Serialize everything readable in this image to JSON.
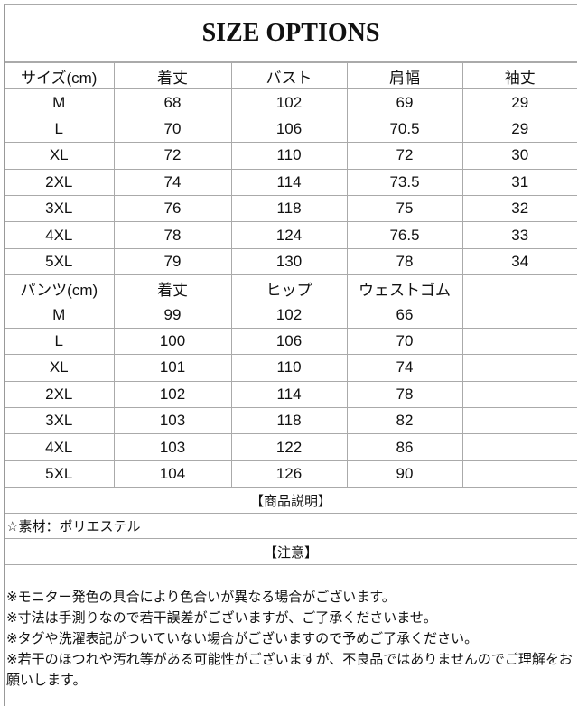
{
  "title": "SIZE OPTIONS",
  "tops_table": {
    "headers": [
      "サイズ(cm)",
      "着丈",
      "バスト",
      "肩幅",
      "袖丈"
    ],
    "rows": [
      [
        "M",
        "68",
        "102",
        "69",
        "29"
      ],
      [
        "L",
        "70",
        "106",
        "70.5",
        "29"
      ],
      [
        "XL",
        "72",
        "110",
        "72",
        "30"
      ],
      [
        "2XL",
        "74",
        "114",
        "73.5",
        "31"
      ],
      [
        "3XL",
        "76",
        "118",
        "75",
        "32"
      ],
      [
        "4XL",
        "78",
        "124",
        "76.5",
        "33"
      ],
      [
        "5XL",
        "79",
        "130",
        "78",
        "34"
      ]
    ]
  },
  "pants_table": {
    "headers": [
      "パンツ(cm)",
      "着丈",
      "ヒップ",
      "ウェストゴム",
      ""
    ],
    "rows": [
      [
        "M",
        "99",
        "102",
        "66",
        ""
      ],
      [
        "L",
        "100",
        "106",
        "70",
        ""
      ],
      [
        "XL",
        "101",
        "110",
        "74",
        ""
      ],
      [
        "2XL",
        "102",
        "114",
        "78",
        ""
      ],
      [
        "3XL",
        "103",
        "118",
        "82",
        ""
      ],
      [
        "4XL",
        "103",
        "122",
        "86",
        ""
      ],
      [
        "5XL",
        "104",
        "126",
        "90",
        ""
      ]
    ]
  },
  "description_heading": "【商品説明】",
  "material": "☆素材：ポリエステル",
  "notice_heading": "【注意】",
  "notes": [
    "※モニター発色の具合により色合いが異なる場合がございます。",
    "※寸法は手測りなので若干誤差がございますが、ご了承くださいませ。",
    "※タグや洗濯表記がついていない場合がございますので予めご了承ください。",
    "※若干のほつれや汚れ等がある可能性がございますが、不良品ではありませんのでご理解をお願いします。"
  ]
}
